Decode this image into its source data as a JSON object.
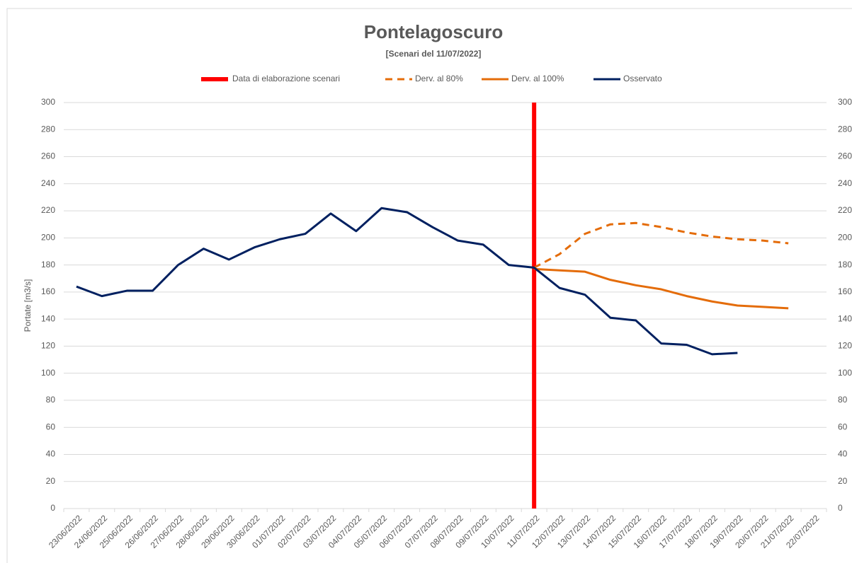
{
  "chart_data": {
    "type": "line",
    "title": "Pontelagoscuro",
    "subtitle": "[Scenari del 11/07/2022]",
    "y_label": "Portate [m3/s]",
    "categories": [
      "23/06/2022",
      "24/06/2022",
      "25/06/2022",
      "26/06/2022",
      "27/06/2022",
      "28/06/2022",
      "29/06/2022",
      "30/06/2022",
      "01/07/2022",
      "02/07/2022",
      "03/07/2022",
      "04/07/2022",
      "05/07/2022",
      "06/07/2022",
      "07/07/2022",
      "08/07/2022",
      "09/07/2022",
      "10/07/2022",
      "11/07/2022",
      "12/07/2022",
      "13/07/2022",
      "14/07/2022",
      "15/07/2022",
      "16/07/2022",
      "17/07/2022",
      "18/07/2022",
      "19/07/2022",
      "20/07/2022",
      "21/07/2022",
      "22/07/2022"
    ],
    "marker": {
      "name": "Data di elaborazione scenari",
      "color": "#ff0000",
      "category": "11/07/2022"
    },
    "series": [
      {
        "name": "Derv. al 80%",
        "color": "#e46c0a",
        "dashed": true,
        "values": [
          null,
          null,
          null,
          null,
          null,
          null,
          null,
          null,
          null,
          null,
          null,
          null,
          null,
          null,
          null,
          null,
          null,
          null,
          178,
          188,
          203,
          210,
          211,
          208,
          204,
          201,
          199,
          198,
          196,
          null
        ]
      },
      {
        "name": "Derv. al 100%",
        "color": "#e46c0a",
        "dashed": false,
        "values": [
          null,
          null,
          null,
          null,
          null,
          null,
          null,
          null,
          null,
          null,
          null,
          null,
          null,
          null,
          null,
          null,
          null,
          null,
          177,
          176,
          175,
          169,
          165,
          162,
          157,
          153,
          150,
          149,
          148,
          null
        ]
      },
      {
        "name": "Osservato",
        "color": "#002060",
        "dashed": false,
        "values": [
          164,
          157,
          161,
          161,
          180,
          192,
          184,
          193,
          199,
          203,
          218,
          205,
          222,
          219,
          208,
          198,
          195,
          180,
          178,
          163,
          158,
          141,
          139,
          122,
          121,
          114,
          115,
          null,
          null,
          null
        ]
      }
    ],
    "ylim": [
      0,
      300
    ],
    "yticks": [
      0,
      20,
      40,
      60,
      80,
      100,
      120,
      140,
      160,
      180,
      200,
      220,
      240,
      260,
      280,
      300
    ],
    "y2lim": [
      0,
      300
    ],
    "y2ticks": [
      0,
      20,
      40,
      60,
      80,
      100,
      120,
      140,
      160,
      180,
      200,
      220,
      240,
      260,
      280,
      300
    ],
    "grid": true
  }
}
